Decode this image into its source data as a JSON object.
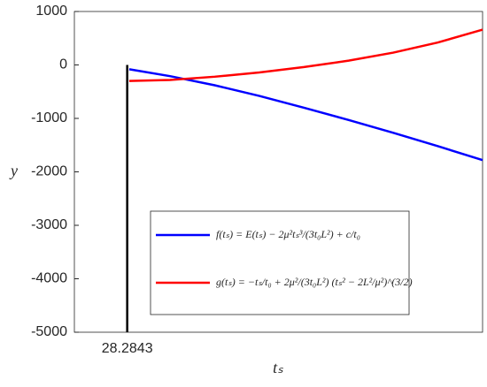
{
  "chart_data": {
    "type": "line",
    "xlabel": "tₛ",
    "ylabel": "y",
    "xlim": [
      20,
      84
    ],
    "xticks": [
      28.2843
    ],
    "ylim": [
      -5000,
      1000
    ],
    "yticks": [
      -5000,
      -4000,
      -3000,
      -2000,
      -1000,
      0,
      1000
    ],
    "legend": "lower-center",
    "series": [
      {
        "name": "f(tₛ) = E(tₛ) − 2μ²tₛ³/(3t₀L²) + c/t₀",
        "color": "#0000ff",
        "x": [
          28.6,
          35,
          42,
          49,
          56,
          63,
          70,
          77,
          84
        ],
        "values": [
          -80,
          -210,
          -380,
          -580,
          -800,
          -1030,
          -1270,
          -1520,
          -1780
        ]
      },
      {
        "name": "g(tₛ) = −tₛ/t₀ + 2μ²/(3t₀L²) (tₛ² − 2L²/μ²)^(3/2)",
        "color": "#ff0000",
        "x": [
          28.6,
          35,
          42,
          49,
          56,
          63,
          70,
          77,
          84
        ],
        "values": [
          -300,
          -280,
          -220,
          -140,
          -40,
          80,
          230,
          420,
          660
        ]
      },
      {
        "color": "#000000",
        "x": [
          28.2843,
          28.2843
        ],
        "values": [
          0,
          -5000
        ]
      }
    ]
  }
}
